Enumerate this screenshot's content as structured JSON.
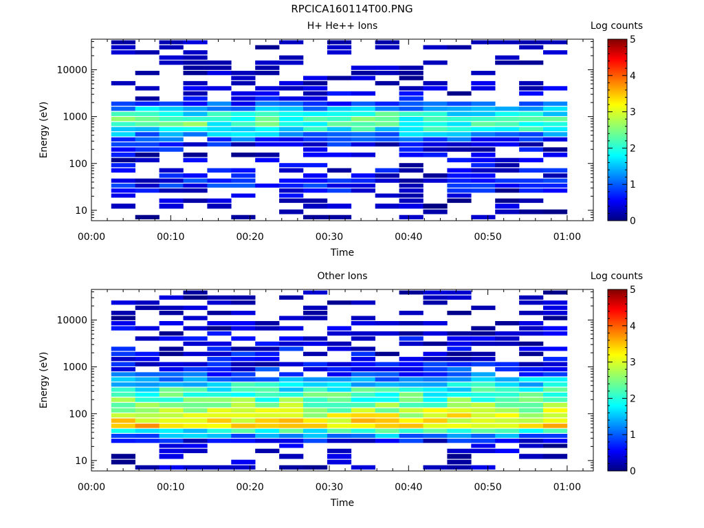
{
  "title": "RPCICA160114T00.PNG",
  "chart_data": [
    {
      "type": "heatmap",
      "title": "H+ He++ Ions",
      "xlabel": "Time",
      "ylabel": "Energy (eV)",
      "colorbar_label": "Log counts",
      "x_ticks": [
        "00:00",
        "00:10",
        "00:20",
        "00:30",
        "00:40",
        "00:50",
        "01:00"
      ],
      "y_ticks": [
        "10",
        "100",
        "1000",
        "10000"
      ],
      "y_scale": "log",
      "ylim": [
        6,
        45000
      ],
      "colorbar_ticks": [
        "0",
        "1",
        "2",
        "3",
        "4",
        "5"
      ],
      "colorbar_range": [
        0,
        5
      ],
      "columns": 19,
      "column_time_start_min": 2.5,
      "column_time_end_min": 60,
      "profile": {
        "description": "approximate log-count level by energy row (low to high energy)",
        "energy_bins_eV": [
          7,
          9,
          12,
          16,
          20,
          26,
          33,
          42,
          54,
          70,
          90,
          115,
          150,
          195,
          250,
          320,
          410,
          530,
          680,
          870,
          1120,
          1440,
          1850,
          2380,
          3060,
          3940,
          5070,
          6520,
          8390,
          10800,
          13900,
          17900,
          23000,
          29600,
          38000
        ],
        "levels": [
          0.05,
          0.05,
          0.1,
          0.1,
          0.3,
          0.5,
          0.7,
          0.6,
          0.5,
          0.5,
          0.4,
          0.4,
          0.4,
          0.5,
          0.6,
          0.9,
          1.4,
          1.9,
          2.2,
          2.2,
          2.0,
          1.5,
          0.9,
          0.5,
          0.3,
          0.2,
          0.15,
          0.1,
          0.1,
          0.1,
          0.05,
          0.05,
          0.05,
          0.05,
          0.05
        ]
      }
    },
    {
      "type": "heatmap",
      "title": "Other Ions",
      "xlabel": "Time",
      "ylabel": "Energy (eV)",
      "colorbar_label": "Log counts",
      "x_ticks": [
        "00:00",
        "00:10",
        "00:20",
        "00:30",
        "00:40",
        "00:50",
        "01:00"
      ],
      "y_ticks": [
        "10",
        "100",
        "1000",
        "10000"
      ],
      "y_scale": "log",
      "ylim": [
        6,
        45000
      ],
      "colorbar_ticks": [
        "0",
        "1",
        "2",
        "3",
        "4",
        "5"
      ],
      "colorbar_range": [
        0,
        5
      ],
      "columns": 19,
      "column_time_start_min": 2.5,
      "column_time_end_min": 60,
      "profile": {
        "description": "approximate log-count level by energy row (low to high energy)",
        "energy_bins_eV": [
          7,
          9,
          12,
          16,
          20,
          26,
          33,
          42,
          54,
          70,
          90,
          115,
          150,
          195,
          250,
          320,
          410,
          530,
          680,
          870,
          1120,
          1440,
          1850,
          2380,
          3060,
          3940,
          5070,
          6520,
          8390,
          10800,
          13900,
          17900,
          23000,
          29600,
          38000
        ],
        "levels": [
          0.2,
          0.2,
          0.1,
          0.2,
          0.3,
          0.6,
          1.3,
          2.0,
          3.4,
          3.2,
          3.0,
          2.7,
          2.5,
          2.3,
          2.1,
          2.0,
          1.8,
          1.4,
          1.0,
          0.8,
          0.6,
          0.5,
          0.5,
          0.5,
          0.4,
          0.4,
          0.3,
          0.3,
          0.2,
          0.2,
          0.15,
          0.1,
          0.05,
          0.05,
          0.05
        ]
      }
    }
  ]
}
